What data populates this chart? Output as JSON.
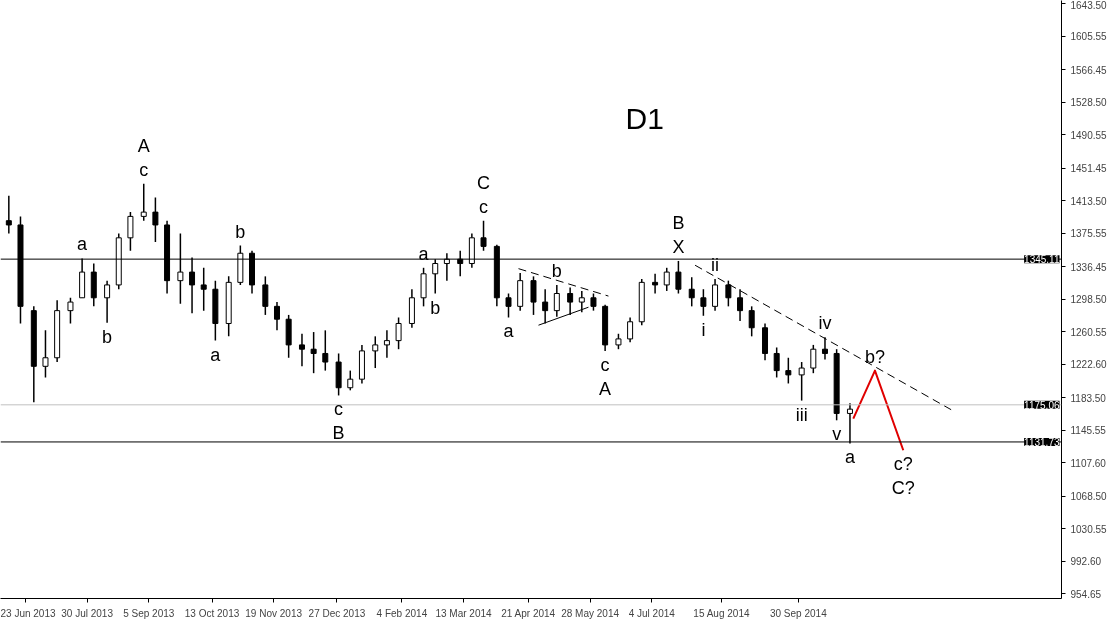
{
  "chart_data": {
    "type": "candlestick",
    "title": "D1",
    "color": "#000000",
    "x": [
      "2013-06-13",
      "2013-06-20",
      "2013-06-28",
      "2013-07-05",
      "2013-07-12",
      "2013-07-20",
      "2013-07-27",
      "2013-08-03",
      "2013-08-11",
      "2013-08-18",
      "2013-08-25",
      "2013-09-02",
      "2013-09-09",
      "2013-09-16",
      "2013-09-24",
      "2013-10-01",
      "2013-10-08",
      "2013-10-15",
      "2013-10-23",
      "2013-10-30",
      "2013-11-06",
      "2013-11-14",
      "2013-11-21",
      "2013-11-28",
      "2013-12-06",
      "2013-12-13",
      "2013-12-20",
      "2013-12-28",
      "2014-01-04",
      "2014-01-11",
      "2014-01-19",
      "2014-01-26",
      "2014-02-02",
      "2014-02-10",
      "2014-02-17",
      "2014-02-24",
      "2014-03-03",
      "2014-03-11",
      "2014-03-18",
      "2014-03-25",
      "2014-04-02",
      "2014-04-09",
      "2014-04-16",
      "2014-04-24",
      "2014-05-01",
      "2014-05-08",
      "2014-05-16",
      "2014-05-23",
      "2014-05-30",
      "2014-06-06",
      "2014-06-14",
      "2014-06-21",
      "2014-06-28",
      "2014-07-06",
      "2014-07-13",
      "2014-07-20",
      "2014-07-28",
      "2014-08-04",
      "2014-08-11",
      "2014-08-19",
      "2014-08-26",
      "2014-09-02",
      "2014-09-10",
      "2014-09-17",
      "2014-09-24",
      "2014-10-02",
      "2014-10-09",
      "2014-10-16",
      "2014-10-23",
      "2014-10-31"
    ],
    "ohlc": [
      [
        1390,
        1419,
        1375,
        1385
      ],
      [
        1385,
        1395,
        1270,
        1290
      ],
      [
        1285,
        1290,
        1178,
        1220
      ],
      [
        1220,
        1262,
        1207,
        1230
      ],
      [
        1230,
        1297,
        1225,
        1285
      ],
      [
        1285,
        1300,
        1270,
        1295
      ],
      [
        1300,
        1346,
        1300,
        1330
      ],
      [
        1330,
        1340,
        1290,
        1300
      ],
      [
        1300,
        1320,
        1271,
        1315
      ],
      [
        1315,
        1375,
        1310,
        1370
      ],
      [
        1370,
        1400,
        1355,
        1395
      ],
      [
        1395,
        1433,
        1390,
        1400
      ],
      [
        1400,
        1417,
        1365,
        1385
      ],
      [
        1385,
        1390,
        1305,
        1320
      ],
      [
        1320,
        1375,
        1293,
        1330
      ],
      [
        1330,
        1347,
        1282,
        1315
      ],
      [
        1315,
        1335,
        1285,
        1310
      ],
      [
        1310,
        1320,
        1250,
        1270
      ],
      [
        1270,
        1325,
        1255,
        1318
      ],
      [
        1318,
        1361,
        1315,
        1352
      ],
      [
        1352,
        1355,
        1305,
        1315
      ],
      [
        1315,
        1325,
        1280,
        1290
      ],
      [
        1290,
        1295,
        1262,
        1275
      ],
      [
        1275,
        1280,
        1230,
        1245
      ],
      [
        1245,
        1258,
        1220,
        1240
      ],
      [
        1240,
        1260,
        1212,
        1235
      ],
      [
        1235,
        1262,
        1215,
        1225
      ],
      [
        1225,
        1235,
        1186,
        1195
      ],
      [
        1195,
        1215,
        1192,
        1205
      ],
      [
        1205,
        1245,
        1200,
        1238
      ],
      [
        1238,
        1255,
        1218,
        1245
      ],
      [
        1245,
        1262,
        1230,
        1250
      ],
      [
        1250,
        1277,
        1240,
        1270
      ],
      [
        1270,
        1310,
        1265,
        1300
      ],
      [
        1300,
        1335,
        1290,
        1328
      ],
      [
        1328,
        1345,
        1305,
        1340
      ],
      [
        1340,
        1352,
        1320,
        1345
      ],
      [
        1345,
        1355,
        1325,
        1340
      ],
      [
        1340,
        1375,
        1335,
        1370
      ],
      [
        1370,
        1390,
        1355,
        1360
      ],
      [
        1360,
        1362,
        1290,
        1300
      ],
      [
        1300,
        1305,
        1277,
        1290
      ],
      [
        1290,
        1329,
        1285,
        1320
      ],
      [
        1320,
        1325,
        1280,
        1295
      ],
      [
        1295,
        1310,
        1270,
        1285
      ],
      [
        1285,
        1315,
        1278,
        1305
      ],
      [
        1305,
        1312,
        1280,
        1295
      ],
      [
        1295,
        1308,
        1283,
        1300
      ],
      [
        1300,
        1305,
        1285,
        1290
      ],
      [
        1290,
        1292,
        1238,
        1245
      ],
      [
        1245,
        1258,
        1240,
        1252
      ],
      [
        1252,
        1277,
        1248,
        1272
      ],
      [
        1272,
        1322,
        1268,
        1318
      ],
      [
        1318,
        1328,
        1305,
        1315
      ],
      [
        1315,
        1335,
        1308,
        1330
      ],
      [
        1330,
        1343,
        1305,
        1310
      ],
      [
        1310,
        1324,
        1290,
        1300
      ],
      [
        1300,
        1310,
        1279,
        1290
      ],
      [
        1290,
        1322,
        1285,
        1315
      ],
      [
        1315,
        1320,
        1290,
        1300
      ],
      [
        1300,
        1310,
        1273,
        1285
      ],
      [
        1285,
        1290,
        1255,
        1265
      ],
      [
        1265,
        1270,
        1227,
        1235
      ],
      [
        1235,
        1242,
        1207,
        1215
      ],
      [
        1215,
        1230,
        1200,
        1210
      ],
      [
        1210,
        1225,
        1180,
        1218
      ],
      [
        1218,
        1245,
        1212,
        1240
      ],
      [
        1240,
        1254,
        1228,
        1235
      ],
      [
        1235,
        1240,
        1157,
        1165
      ],
      [
        1165,
        1177,
        1130,
        1170
      ]
    ],
    "series": [
      {
        "type": "line",
        "x": [
          "2014-04-15",
          "2014-06-08"
        ],
        "values": [
          1334,
          1302
        ],
        "color": "#000000",
        "line_style": "dashed"
      },
      {
        "type": "line",
        "x": [
          "2014-04-27",
          "2014-05-27"
        ],
        "values": [
          1268,
          1289
        ],
        "color": "#000000",
        "line_style": "solid"
      },
      {
        "type": "line",
        "x": [
          "2014-07-30",
          "2015-01-01"
        ],
        "values": [
          1338,
          1168
        ],
        "color": "#000000",
        "line_style": "dashed"
      },
      {
        "type": "line",
        "x": [
          "2014-11-02",
          "2014-11-15",
          "2014-12-02"
        ],
        "values": [
          1159,
          1215,
          1122
        ],
        "color": "#e00000",
        "line_style": "solid"
      }
    ],
    "ref_lines": [
      {
        "axis": "y",
        "value": 1345.11,
        "label": "1345.11",
        "color": "#000000"
      },
      {
        "axis": "y",
        "value": 1175.06,
        "label": "1175.06",
        "color": "#c0c0c0"
      },
      {
        "axis": "y",
        "value": 1131.73,
        "label": "1131.73",
        "color": "#000000"
      }
    ],
    "annotations": [
      {
        "text": "c",
        "x": "2013-09-02",
        "y": 1433
      },
      {
        "text": "A",
        "x": "2013-09-02",
        "y": 1433
      },
      {
        "text": "a",
        "x": "2013-07-27",
        "y": 1346
      },
      {
        "text": "b",
        "x": "2013-08-11",
        "y": 1271
      },
      {
        "text": "a",
        "x": "2013-10-15",
        "y": 1250
      },
      {
        "text": "b",
        "x": "2013-10-30",
        "y": 1361
      },
      {
        "text": "c",
        "x": "2013-12-28",
        "y": 1186
      },
      {
        "text": "B",
        "x": "2013-12-28",
        "y": 1186
      },
      {
        "text": "a",
        "x": "2014-02-17",
        "y": 1335
      },
      {
        "text": "b",
        "x": "2014-02-24",
        "y": 1305
      },
      {
        "text": "c",
        "x": "2014-03-25",
        "y": 1390
      },
      {
        "text": "C",
        "x": "2014-03-25",
        "y": 1390
      },
      {
        "text": "a",
        "x": "2014-04-09",
        "y": 1277
      },
      {
        "text": "b",
        "x": "2014-05-08",
        "y": 1315
      },
      {
        "text": "c",
        "x": "2014-06-06",
        "y": 1238
      },
      {
        "text": "A",
        "x": "2014-06-06",
        "y": 1238
      },
      {
        "text": "X",
        "x": "2014-07-20",
        "y": 1343
      },
      {
        "text": "B",
        "x": "2014-07-20",
        "y": 1343
      },
      {
        "text": "ii",
        "x": "2014-08-11",
        "y": 1322
      },
      {
        "text": "i",
        "x": "2014-08-04",
        "y": 1279
      },
      {
        "text": "iv",
        "x": "2014-10-16",
        "y": 1254
      },
      {
        "text": "iii",
        "x": "2014-10-02",
        "y": 1180
      },
      {
        "text": "v",
        "x": "2014-10-23",
        "y": 1157
      },
      {
        "text": "a",
        "x": "2014-10-31",
        "y": 1130
      },
      {
        "text": "b?",
        "x": "2014-11-15",
        "y": 1215
      },
      {
        "text": "c?",
        "x": "2014-12-02",
        "y": 1122
      },
      {
        "text": "C?",
        "x": "2014-12-02",
        "y": 1122
      }
    ],
    "xlim": [
      "2013-06-08",
      "2015-03-07"
    ],
    "xticks": [
      {
        "value": "2013-06-23",
        "label": "23 Jun 2013"
      },
      {
        "value": "2013-07-30",
        "label": "30 Jul 2013"
      },
      {
        "value": "2013-09-05",
        "label": "5 Sep 2013"
      },
      {
        "value": "2013-10-13",
        "label": "13 Oct 2013"
      },
      {
        "value": "2013-11-19",
        "label": "19 Nov 2013"
      },
      {
        "value": "2013-12-27",
        "label": "27 Dec 2013"
      },
      {
        "value": "2014-02-04",
        "label": "4 Feb 2014"
      },
      {
        "value": "2014-03-13",
        "label": "13 Mar 2014"
      },
      {
        "value": "2014-04-21",
        "label": "21 Apr 2014"
      },
      {
        "value": "2014-05-28",
        "label": "28 May 2014"
      },
      {
        "value": "2014-07-04",
        "label": "4 Jul 2014"
      },
      {
        "value": "2014-08-15",
        "label": "15 Aug 2014"
      },
      {
        "value": "2014-09-30",
        "label": "30 Sep 2014"
      }
    ],
    "ylim": [
      949,
      1647
    ],
    "yticks": [
      {
        "value": 1643.5,
        "label": "1643.50"
      },
      1605.55,
      1566.45,
      {
        "value": 1528.5,
        "label": "1528.50"
      },
      1490.55,
      1451.45,
      {
        "value": 1413.5,
        "label": "1413.50"
      },
      1375.55,
      1336.45,
      {
        "value": 1298.5,
        "label": "1298.50"
      },
      1260.55,
      {
        "value": 1222.6,
        "label": "1222.60"
      },
      {
        "value": 1183.5,
        "label": "1183.50"
      },
      1145.55,
      {
        "value": 1107.6,
        "label": "1107.60"
      },
      {
        "value": 1068.5,
        "label": "1068.50"
      },
      1030.55,
      {
        "value": 992.6,
        "label": "992.60"
      },
      954.65
    ]
  }
}
